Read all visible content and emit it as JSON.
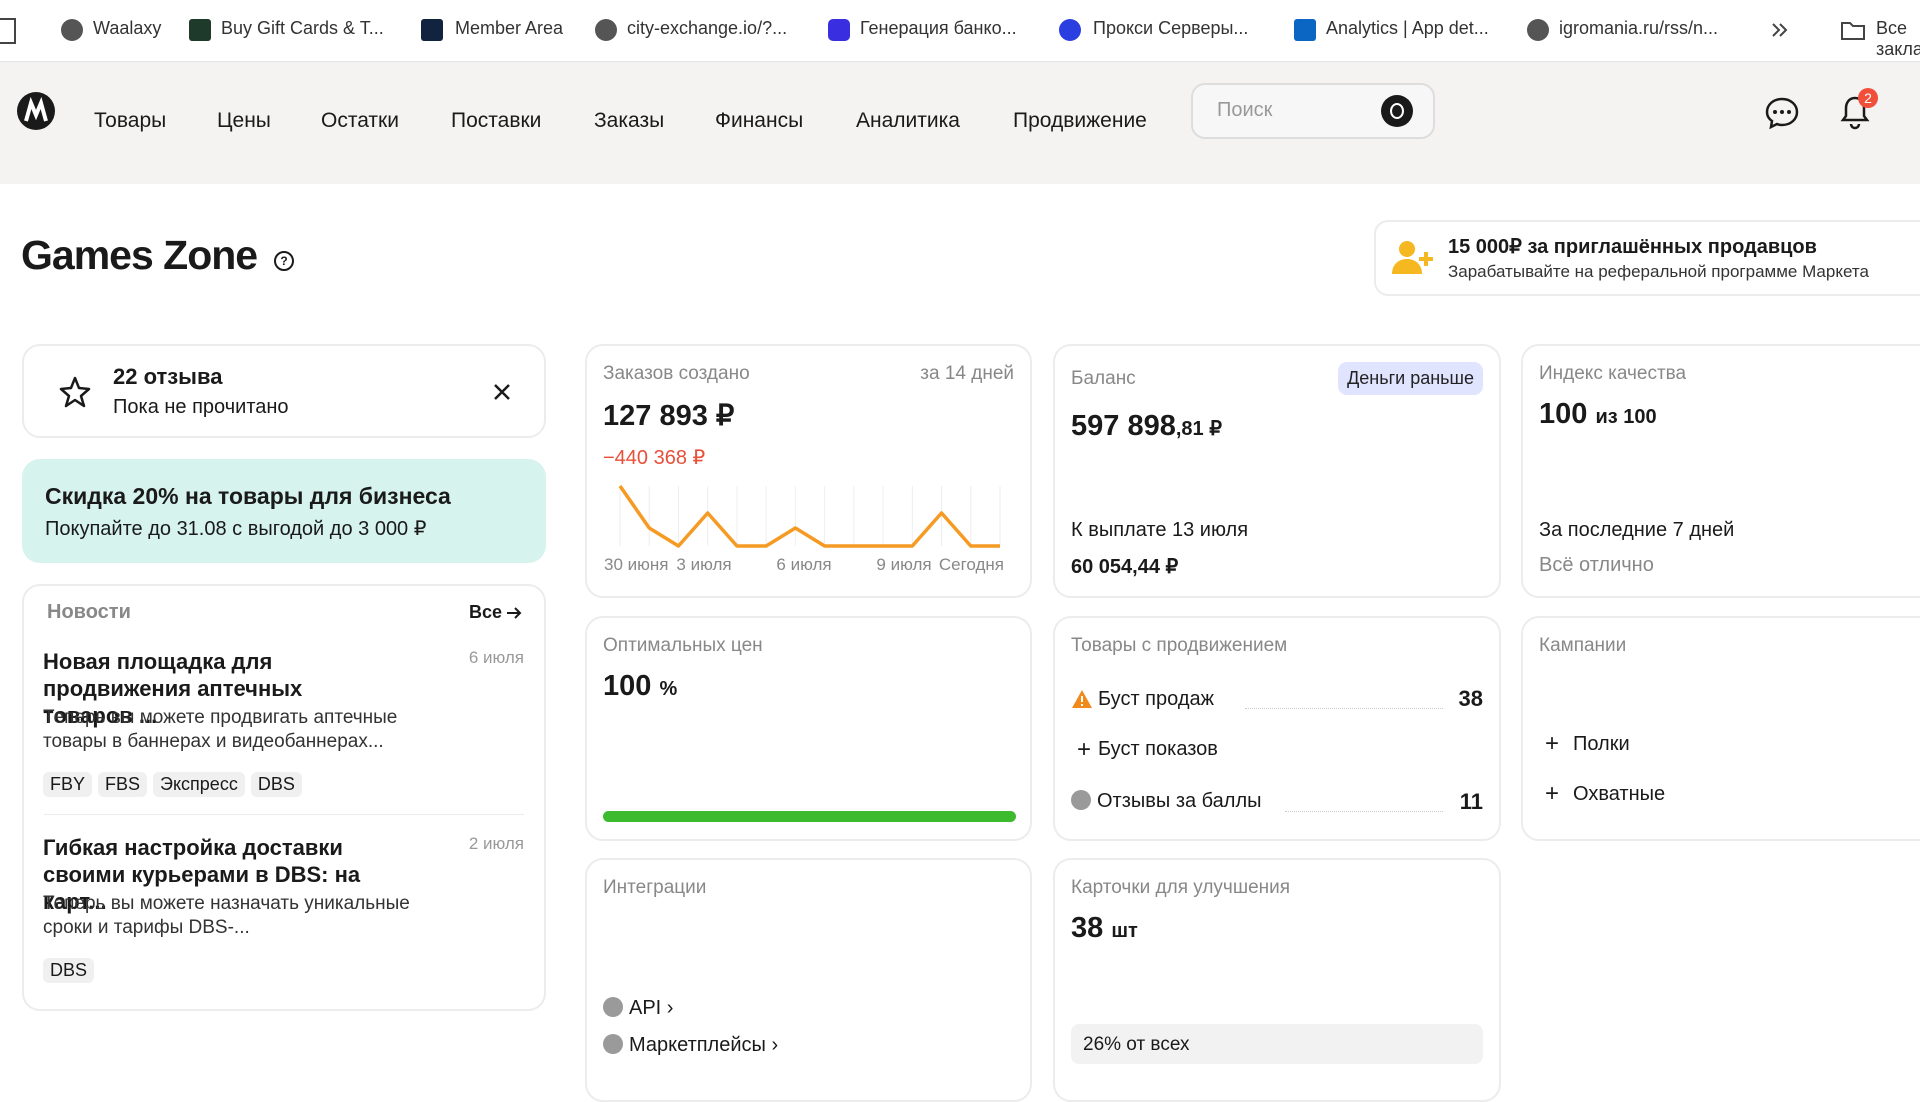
{
  "bookmarks": [
    "Waalaxy",
    "Buy Gift Cards & T...",
    "Member Area",
    "city-exchange.io/?...",
    "Генерация банко...",
    "Прокси Серверы...",
    "Analytics | App det...",
    "igromania.ru/rss/n...",
    "Все закладки"
  ],
  "nav": {
    "items": [
      "Товары",
      "Цены",
      "Остатки",
      "Поставки",
      "Заказы",
      "Финансы",
      "Аналитика",
      "Продвижение"
    ],
    "search": "Поиск",
    "badge": "2"
  },
  "title": "Games Zone",
  "referral": {
    "title": "15 000₽ за приглашённых продавцов",
    "text": "Зарабатывайте на реферальной программе Маркета"
  },
  "reviews": {
    "title": "22 отзыва",
    "subtitle": "Пока не прочитано"
  },
  "discount": {
    "title": "Скидка 20% на товары для бизнеса",
    "text": "Покупайте до 31.08 с выгодой до 3 000 ₽"
  },
  "news": {
    "heading": "Новости",
    "all": "Все",
    "items": [
      {
        "title": "Новая площадка для продвижения аптечных товаров ...",
        "date": "6 июля",
        "text": "Теперь вы можете продвигать аптечные товары в баннерах и видеобаннерах...",
        "tags": [
          "FBY",
          "FBS",
          "Экспресс",
          "DBS"
        ]
      },
      {
        "title": "Гибкая настройка доставки своими курьерами в DBS: на карт...",
        "date": "2 июля",
        "text": "Теперь вы можете назначать уникальные сроки и тарифы DBS-...",
        "tags": [
          "DBS"
        ]
      }
    ]
  },
  "orders": {
    "label": "Заказов создано",
    "period": "за 14 дней",
    "value": "127 893 ₽",
    "change": "−440 368 ₽",
    "chart": {
      "values": [
        10,
        3,
        0,
        5.5,
        0,
        0,
        3,
        0,
        0,
        0,
        0,
        5.5,
        0,
        0
      ],
      "labels": [
        "30 июня",
        "3 июля",
        "6 июля",
        "9 июля",
        "Сегодня"
      ]
    }
  },
  "balance": {
    "label": "Баланс",
    "badge": "Деньги раньше",
    "value": "597 898",
    "cents": ",81 ₽",
    "payout_label": "К выплате 13 июля",
    "payout": "60 054,44 ₽"
  },
  "quality": {
    "label": "Индекс качества",
    "value": "100",
    "suffix": "из 100",
    "period": "За последние 7 дней",
    "status": "Всё отлично"
  },
  "optimal": {
    "label": "Оптимальных цен",
    "value": 100,
    "unit": "%"
  },
  "promo": {
    "label": "Товары с продвижением",
    "rows": [
      {
        "name": "Буст продаж",
        "count": "38"
      },
      {
        "name": "Буст показов"
      },
      {
        "name": "Отзывы за баллы",
        "count": "11"
      }
    ]
  },
  "campaigns": {
    "label": "Кампании",
    "items": [
      "Полки",
      "Охватные"
    ]
  },
  "integrations": {
    "label": "Интеграции",
    "items": [
      "API",
      "Маркетплейсы"
    ]
  },
  "improve": {
    "label": "Карточки для улучшения",
    "value": "38",
    "unit": "шт",
    "note": "26% от всех"
  }
}
